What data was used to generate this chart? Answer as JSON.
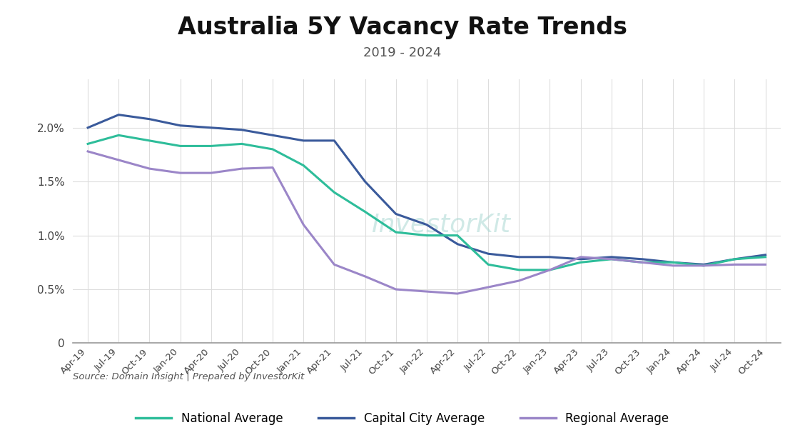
{
  "title": "Australia 5Y Vacancy Rate Trends",
  "subtitle": "2019 - 2024",
  "source_text": "Source: Domain Insight | Prepared by InvestorKit",
  "watermark": "InvestorKit",
  "background_color": "#ffffff",
  "title_fontsize": 24,
  "subtitle_fontsize": 13,
  "x_labels": [
    "Apr-19",
    "Jul-19",
    "Oct-19",
    "Jan-20",
    "Apr-20",
    "Jul-20",
    "Oct-20",
    "Jan-21",
    "Apr-21",
    "Jul-21",
    "Oct-21",
    "Jan-22",
    "Apr-22",
    "Jul-22",
    "Oct-22",
    "Jan-23",
    "Apr-23",
    "Jul-23",
    "Oct-23",
    "Jan-24",
    "Apr-24",
    "Jul-24",
    "Oct-24"
  ],
  "national_avg": [
    0.0185,
    0.0193,
    0.0188,
    0.0183,
    0.0183,
    0.0185,
    0.018,
    0.0165,
    0.014,
    0.0122,
    0.0103,
    0.01,
    0.01,
    0.0073,
    0.0068,
    0.0068,
    0.0075,
    0.0078,
    0.0075,
    0.0075,
    0.0072,
    0.0078,
    0.008
  ],
  "capital_city_avg": [
    0.02,
    0.0212,
    0.0208,
    0.0202,
    0.02,
    0.0198,
    0.0193,
    0.0188,
    0.0188,
    0.015,
    0.012,
    0.011,
    0.0092,
    0.0083,
    0.008,
    0.008,
    0.0078,
    0.008,
    0.0078,
    0.0075,
    0.0073,
    0.0078,
    0.0082
  ],
  "regional_avg": [
    0.0178,
    0.017,
    0.0162,
    0.0158,
    0.0158,
    0.0162,
    0.0163,
    0.011,
    0.0073,
    0.0062,
    0.005,
    0.0048,
    0.0046,
    0.0052,
    0.0058,
    0.0068,
    0.008,
    0.0078,
    0.0075,
    0.0072,
    0.0072,
    0.0073,
    0.0073
  ],
  "national_color": "#2ebd9a",
  "capital_color": "#3a5a9b",
  "regional_color": "#9b86c8",
  "line_width": 2.2,
  "ylim": [
    0,
    0.0245
  ],
  "yticks": [
    0,
    0.005,
    0.01,
    0.015,
    0.02
  ],
  "ytick_labels": [
    "0",
    "0.5%",
    "1.0%",
    "1.5%",
    "2.0%"
  ],
  "grid_color": "#dddddd",
  "legend_labels": [
    "National Average",
    "Capital City Average",
    "Regional Average"
  ]
}
